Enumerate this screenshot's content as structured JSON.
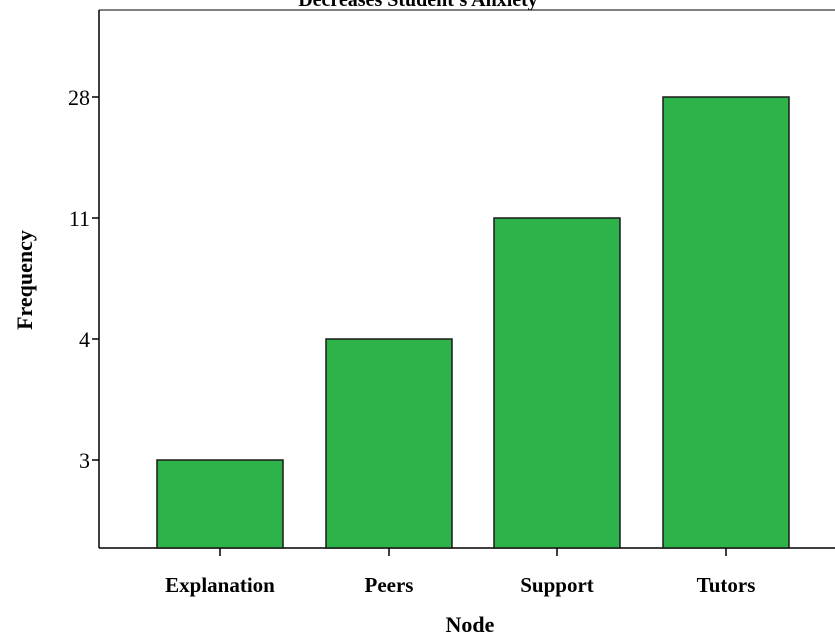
{
  "chart_data": {
    "type": "bar",
    "title": "Decreases Student's Anxiety",
    "xlabel": "Node",
    "ylabel": "Frequency",
    "categories": [
      "Explanation",
      "Peers",
      "Support",
      "Tutors"
    ],
    "values": [
      3,
      4,
      11,
      28
    ],
    "ytick_labels": [
      "3",
      "4",
      "11",
      "28"
    ],
    "bar_color": "#2db34a",
    "grid": false,
    "legend": "none"
  }
}
